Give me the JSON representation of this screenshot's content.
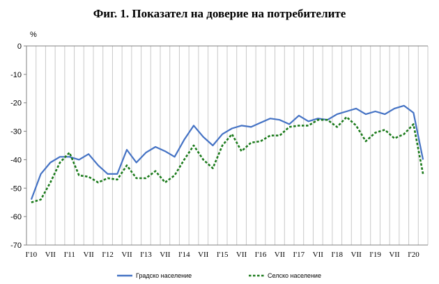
{
  "chart_data": {
    "type": "line",
    "title": "Фиг. 1. Показател на доверие на потребителите",
    "ylabel": "%",
    "xlabel": "",
    "ylim": [
      -70,
      0
    ],
    "yticks": [
      0,
      -10,
      -20,
      -30,
      -40,
      -50,
      -60,
      -70
    ],
    "grid": true,
    "legend_position": "bottom",
    "x_tick_labels": [
      {
        "i": 0,
        "label": "I'10"
      },
      {
        "i": 2,
        "label": "VII"
      },
      {
        "i": 4,
        "label": "I'11"
      },
      {
        "i": 6,
        "label": "VII"
      },
      {
        "i": 8,
        "label": "I'12"
      },
      {
        "i": 10,
        "label": "VII"
      },
      {
        "i": 12,
        "label": "I'13"
      },
      {
        "i": 14,
        "label": "VII"
      },
      {
        "i": 16,
        "label": "I'14"
      },
      {
        "i": 18,
        "label": "VII"
      },
      {
        "i": 20,
        "label": "I'15"
      },
      {
        "i": 22,
        "label": "VII"
      },
      {
        "i": 24,
        "label": "I'16"
      },
      {
        "i": 26,
        "label": "VII"
      },
      {
        "i": 28,
        "label": "I'17"
      },
      {
        "i": 30,
        "label": "VII"
      },
      {
        "i": 32,
        "label": "I'18"
      },
      {
        "i": 34,
        "label": "VII"
      },
      {
        "i": 36,
        "label": "I'19"
      },
      {
        "i": 38,
        "label": "VII"
      },
      {
        "i": 40,
        "label": "I'20"
      }
    ],
    "series": [
      {
        "name": "Градско население",
        "color": "#4472c4",
        "style": "solid",
        "values": [
          -54,
          -45,
          -41,
          -39,
          -39,
          -40,
          -38,
          -42,
          -45,
          -45,
          -36.5,
          -41,
          -37.5,
          -35.5,
          -37,
          -39,
          -33,
          -28,
          -32,
          -35,
          -31,
          -29,
          -28,
          -28.5,
          -27,
          -25.5,
          -26,
          -27.5,
          -24.5,
          -26.5,
          -25.5,
          -26,
          -24,
          -23,
          -22,
          -24,
          -23,
          -24,
          -22,
          -21,
          -23.5,
          -40
        ]
      },
      {
        "name": "Селско население",
        "color": "#1a7a1a",
        "style": "dashed",
        "values": [
          -55,
          -54,
          -48,
          -41,
          -37.5,
          -45.5,
          -46,
          -48,
          -46.5,
          -47,
          -42,
          -46.5,
          -46.5,
          -44,
          -48,
          -45.5,
          -40,
          -35,
          -40,
          -43,
          -35,
          -31,
          -37,
          -34,
          -33.5,
          -31.5,
          -31.5,
          -28.5,
          -28,
          -28,
          -26,
          -26,
          -28.5,
          -25,
          -28,
          -33.5,
          -30.5,
          -29.5,
          -32.5,
          -31,
          -27.5,
          -45
        ]
      }
    ]
  }
}
